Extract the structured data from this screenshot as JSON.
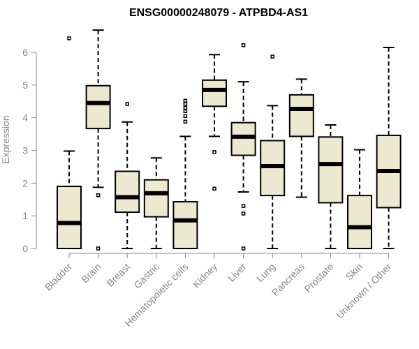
{
  "chart_data": {
    "type": "boxplot",
    "title": "ENSG00000248079 - ATPBD4-AS1",
    "ylabel": "Expression",
    "ylim": [
      0,
      6.2
    ],
    "yticks": [
      "0",
      "1",
      "2",
      "3",
      "4",
      "5",
      "6"
    ],
    "categories": [
      "Bladder",
      "Brain",
      "Breast",
      "Gastric",
      "Hematopoietic cells",
      "Kidney",
      "Liver",
      "Lung",
      "Pancreas",
      "Prostate",
      "Skin",
      "Unknown / Other"
    ],
    "boxes": [
      {
        "min": 0,
        "q1": 0,
        "median": 0.78,
        "q3": 1.9,
        "max": 2.98,
        "outliers": [
          6.43
        ]
      },
      {
        "min": 1.87,
        "q1": 3.67,
        "median": 4.45,
        "q3": 4.98,
        "max": 6.68,
        "outliers": [
          1.63,
          0
        ]
      },
      {
        "min": 0,
        "q1": 1.11,
        "median": 1.57,
        "q3": 2.36,
        "max": 3.87,
        "outliers": [
          4.42
        ]
      },
      {
        "min": 0,
        "q1": 0.97,
        "median": 1.69,
        "q3": 2.1,
        "max": 2.77,
        "outliers": []
      },
      {
        "min": 0,
        "q1": 0,
        "median": 0.86,
        "q3": 1.43,
        "max": 3.43,
        "outliers": [
          3.88,
          4.05,
          4.2,
          4.3,
          4.42,
          4.52
        ]
      },
      {
        "min": 3.43,
        "q1": 4.35,
        "median": 4.85,
        "q3": 5.15,
        "max": 5.93,
        "outliers": [
          2.95,
          1.83
        ]
      },
      {
        "min": 1.73,
        "q1": 2.85,
        "median": 3.42,
        "q3": 3.85,
        "max": 5.1,
        "outliers": [
          6.22,
          1.3,
          1.07,
          0
        ]
      },
      {
        "min": 0,
        "q1": 1.62,
        "median": 2.52,
        "q3": 3.3,
        "max": 4.37,
        "outliers": [
          5.87
        ]
      },
      {
        "min": 1.57,
        "q1": 3.43,
        "median": 4.27,
        "q3": 4.7,
        "max": 5.18,
        "outliers": []
      },
      {
        "min": 0,
        "q1": 1.4,
        "median": 2.58,
        "q3": 3.41,
        "max": 3.78,
        "outliers": []
      },
      {
        "min": 0,
        "q1": 0,
        "median": 0.65,
        "q3": 1.62,
        "max": 3.02,
        "outliers": []
      },
      {
        "min": 0,
        "q1": 1.25,
        "median": 2.37,
        "q3": 3.46,
        "max": 6.15,
        "outliers": []
      }
    ],
    "box_color": "#ede8d0",
    "grid": false
  }
}
